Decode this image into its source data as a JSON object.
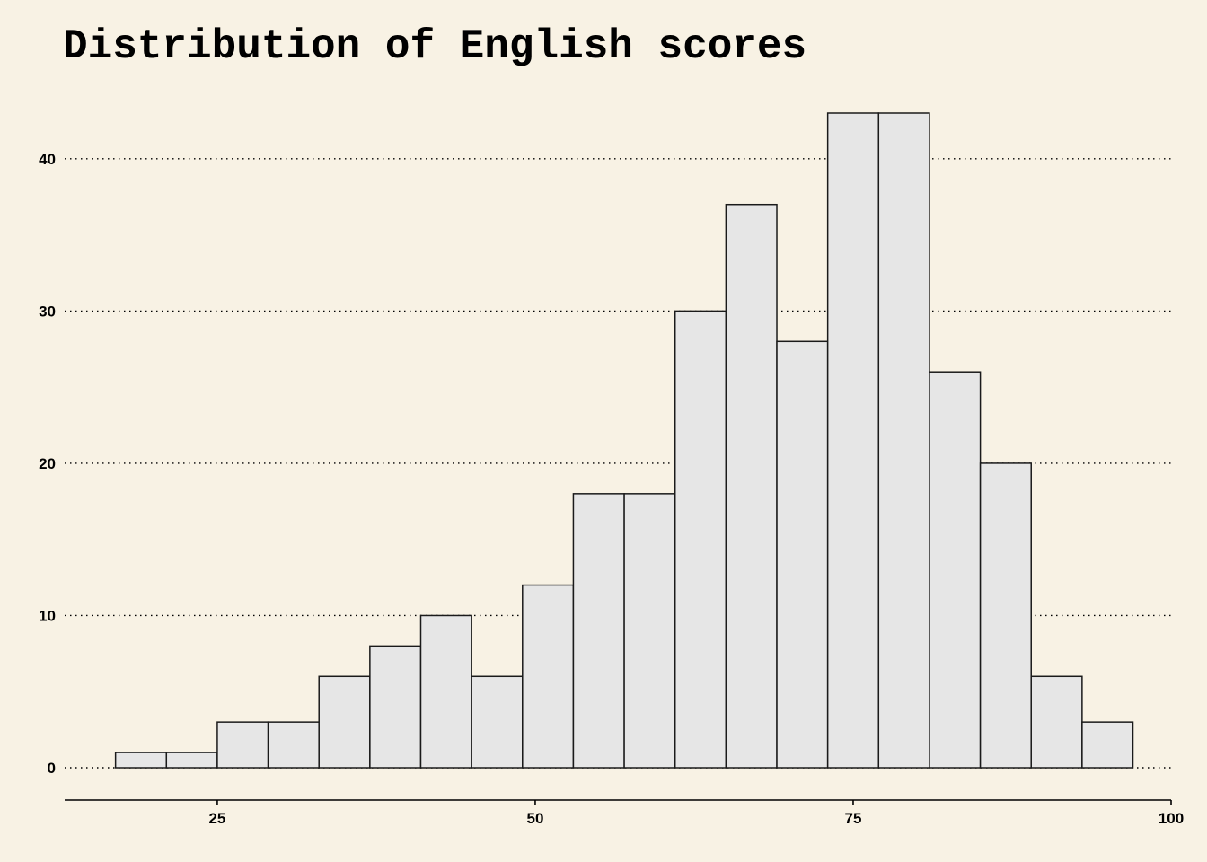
{
  "chart_data": {
    "type": "bar",
    "title": "Distribution of English scores",
    "xlabel": "",
    "ylabel": "",
    "bin_edges": [
      17,
      21,
      25,
      29,
      33,
      37,
      41,
      45,
      49,
      53,
      57,
      61,
      65,
      69,
      73,
      77,
      81,
      85,
      89,
      93,
      97
    ],
    "values": [
      1,
      1,
      3,
      3,
      6,
      8,
      10,
      6,
      12,
      18,
      18,
      30,
      37,
      28,
      43,
      43,
      26,
      20,
      6,
      3
    ],
    "xlim": [
      13,
      100
    ],
    "ylim": [
      0,
      43
    ],
    "x_ticks": [
      25,
      50,
      75,
      100
    ],
    "y_ticks": [
      0,
      10,
      20,
      30,
      40
    ],
    "grid": "horizontal dotted",
    "legend": "none",
    "colors": {
      "background": "#f8f2e4",
      "bar_fill": "#e6e6e6",
      "bar_stroke": "#1a1a1a",
      "grid": "#000000"
    }
  }
}
